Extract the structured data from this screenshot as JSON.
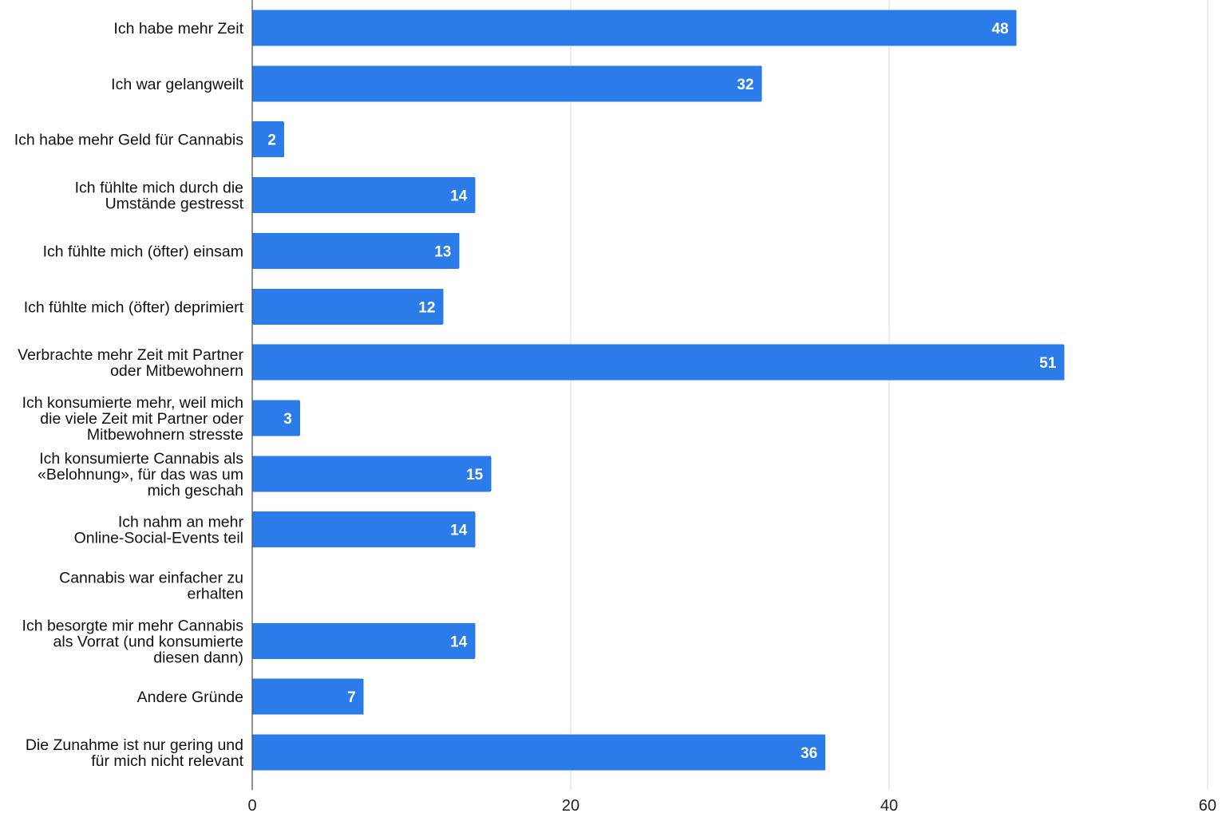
{
  "chart_data": {
    "type": "bar",
    "orientation": "horizontal",
    "categories": [
      [
        "Ich habe mehr Zeit"
      ],
      [
        "Ich war gelangweilt"
      ],
      [
        "Ich habe mehr Geld für Cannabis"
      ],
      [
        "Ich fühlte mich durch die",
        "Umstände gestresst"
      ],
      [
        "Ich fühlte mich (öfter) einsam"
      ],
      [
        "Ich fühlte mich (öfter) deprimiert"
      ],
      [
        "Verbrachte mehr Zeit mit Partner",
        "oder Mitbewohnern"
      ],
      [
        "Ich konsumierte mehr, weil mich",
        "die viele Zeit mit Partner oder",
        "Mitbewohnern stresste"
      ],
      [
        "Ich konsumierte Cannabis als",
        "«Belohnung», für das was um",
        "mich geschah"
      ],
      [
        "Ich nahm an mehr",
        "Online-Social-Events teil"
      ],
      [
        "Cannabis war einfacher zu",
        "erhalten"
      ],
      [
        "Ich besorgte mir mehr Cannabis",
        "als Vorrat (und konsumierte",
        "diesen dann)"
      ],
      [
        "Andere Gründe"
      ],
      [
        "Die Zunahme ist nur gering und",
        "für mich nicht relevant"
      ]
    ],
    "values": [
      48,
      32,
      2,
      14,
      13,
      12,
      51,
      3,
      15,
      14,
      null,
      14,
      7,
      36
    ],
    "xlim": [
      0,
      60
    ],
    "xticks": [
      0,
      20,
      40,
      60
    ],
    "grid": true,
    "data_labels": true,
    "colors": {
      "bar": "#2b7be9",
      "grid": "#d9d9d9",
      "axis": "#555555"
    }
  }
}
